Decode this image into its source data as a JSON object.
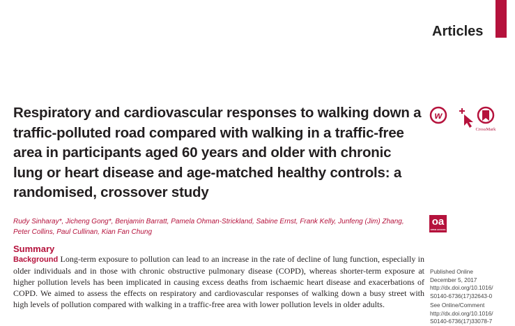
{
  "header": {
    "section": "Articles",
    "accent_color": "#b5123c"
  },
  "title": "Respiratory and cardiovascular responses to walking down a traffic-polluted road compared with walking in a traffic-free area in participants aged 60 years and older with chronic lung or heart disease and age-matched healthy controls: a randomised, crossover study",
  "icons": [
    "lancet-w-icon",
    "plus-cursor-icon",
    "crossmark-icon"
  ],
  "crossmark_label": "CrossMark",
  "authors": "Rudy Sinharay*, Jicheng Gong*, Benjamin Barratt, Pamela Ohman-Strickland, Sabine Ernst, Frank Kelly, Junfeng (Jim) Zhang, Peter Collins, Paul Cullinan, Kian Fan Chung",
  "open_access": {
    "label": "oa",
    "sub": "OPEN ACCESS"
  },
  "summary": {
    "heading": "Summary",
    "background_label": "Background",
    "background_text": "Long-term exposure to pollution can lead to an increase in the rate of decline of lung function, especially in older individuals and in those with chronic obstructive pulmonary disease (COPD), whereas shorter-term exposure at higher pollution levels has been implicated in causing excess deaths from ischaemic heart disease and exacerbations of COPD. We aimed to assess the effects on respiratory and cardiovascular responses of walking down a busy street with high levels of pollution compared with walking in a traffic-free area with lower pollution levels in older adults."
  },
  "sidebar": {
    "published_label": "Published Online",
    "published_date": "December 5, 2017",
    "doi1_a": "http://dx.doi.org/10.1016/",
    "doi1_b": "S0140-6736(17)32643-0",
    "comment_label": "See Online/Comment",
    "doi2_a": "http://dx.doi.org/10.1016/",
    "doi2_b": "S0140-6736(17)33078-7"
  }
}
